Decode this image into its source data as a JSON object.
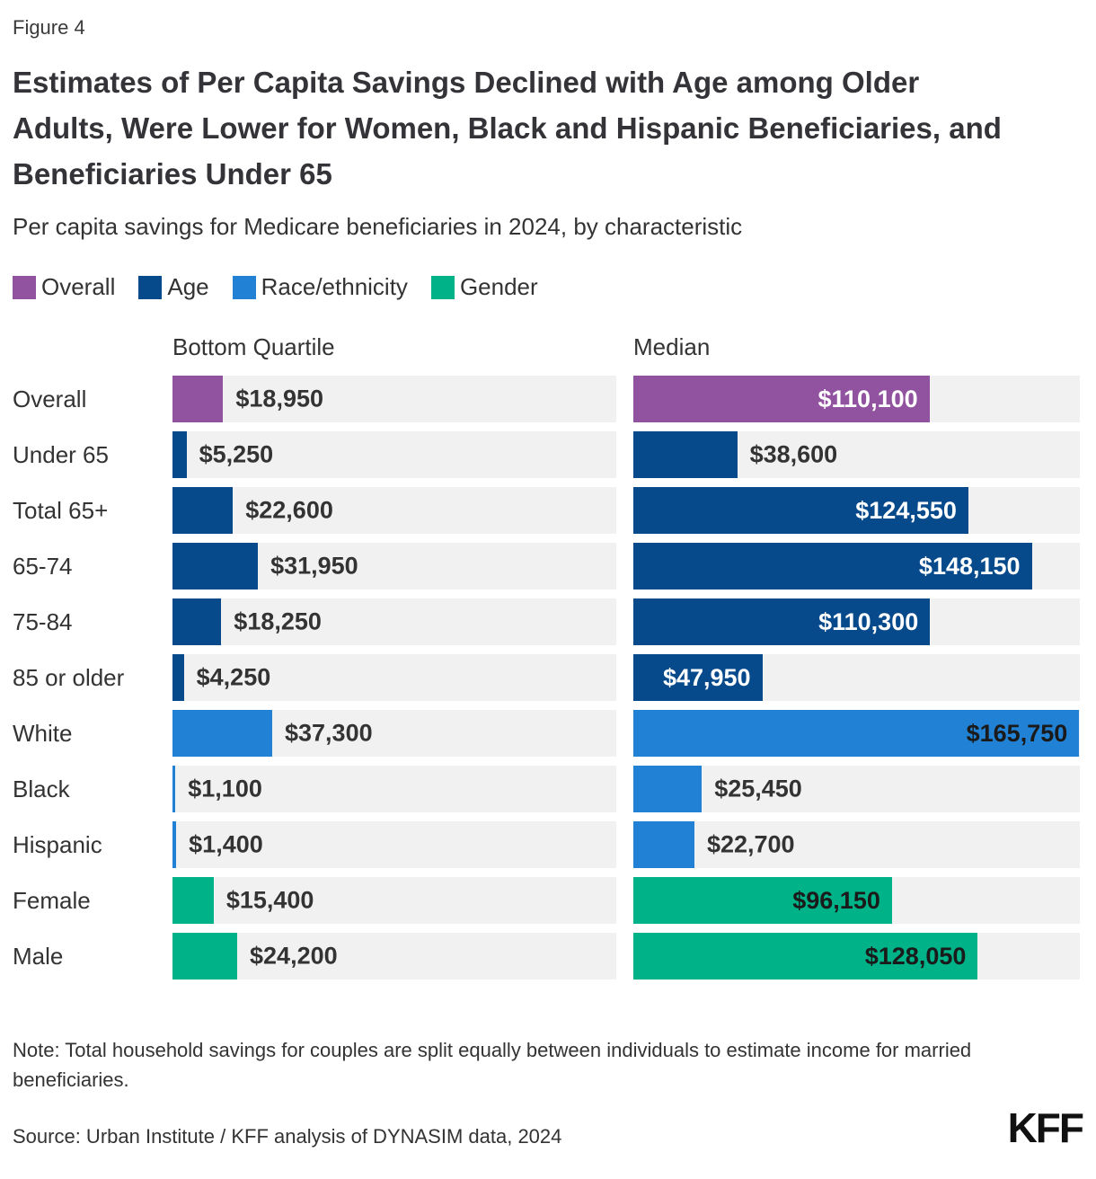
{
  "figure_label": "Figure 4",
  "title": "Estimates of Per Capita Savings Declined with Age among Older Adults, Were Lower for Women, Black and Hispanic Beneficiaries, and Beneficiaries Under 65",
  "subtitle": "Per capita savings for Medicare beneficiaries in 2024, by characteristic",
  "legend": [
    {
      "label": "Overall",
      "color": "#9152A0",
      "on_bar_text": "#FFFFFF"
    },
    {
      "label": "Age",
      "color": "#074A8C",
      "on_bar_text": "#FFFFFF"
    },
    {
      "label": "Race/ethnicity",
      "color": "#2181D4",
      "on_bar_text": "#1A1A1A"
    },
    {
      "label": "Gender",
      "color": "#00B287",
      "on_bar_text": "#1A1A1A"
    }
  ],
  "columns": [
    "Bottom Quartile",
    "Median"
  ],
  "chart_data": {
    "type": "bar",
    "orientation": "horizontal",
    "title": "Per capita savings for Medicare beneficiaries in 2024, by characteristic",
    "axis_max": 166000,
    "track_color": "#F1F1F1",
    "categories": [
      "Overall",
      "Under 65",
      "Total 65+",
      "65-74",
      "75-84",
      "85 or older",
      "White",
      "Black",
      "Hispanic",
      "Female",
      "Male"
    ],
    "series": [
      {
        "name": "Bottom Quartile",
        "values": [
          18950,
          5250,
          22600,
          31950,
          18250,
          4250,
          37300,
          1100,
          1400,
          15400,
          24200
        ]
      },
      {
        "name": "Median",
        "values": [
          110100,
          38600,
          124550,
          148150,
          110300,
          47950,
          165750,
          25450,
          22700,
          96150,
          128050
        ]
      }
    ],
    "rows": [
      {
        "label": "Overall",
        "group": "Overall",
        "bottom_quartile": 18950,
        "bq_label": "$18,950",
        "bq_inside": false,
        "median": 110100,
        "median_label": "$110,100",
        "median_inside": true
      },
      {
        "label": "Under 65",
        "group": "Age",
        "bottom_quartile": 5250,
        "bq_label": "$5,250",
        "bq_inside": false,
        "median": 38600,
        "median_label": "$38,600",
        "median_inside": false
      },
      {
        "label": "Total 65+",
        "group": "Age",
        "bottom_quartile": 22600,
        "bq_label": "$22,600",
        "bq_inside": false,
        "median": 124550,
        "median_label": "$124,550",
        "median_inside": true
      },
      {
        "label": "65-74",
        "group": "Age",
        "bottom_quartile": 31950,
        "bq_label": "$31,950",
        "bq_inside": false,
        "median": 148150,
        "median_label": "$148,150",
        "median_inside": true
      },
      {
        "label": "75-84",
        "group": "Age",
        "bottom_quartile": 18250,
        "bq_label": "$18,250",
        "bq_inside": false,
        "median": 110300,
        "median_label": "$110,300",
        "median_inside": true
      },
      {
        "label": "85 or older",
        "group": "Age",
        "bottom_quartile": 4250,
        "bq_label": "$4,250",
        "bq_inside": false,
        "median": 47950,
        "median_label": "$47,950",
        "median_inside": true
      },
      {
        "label": "White",
        "group": "Race/ethnicity",
        "bottom_quartile": 37300,
        "bq_label": "$37,300",
        "bq_inside": false,
        "median": 165750,
        "median_label": "$165,750",
        "median_inside": true
      },
      {
        "label": "Black",
        "group": "Race/ethnicity",
        "bottom_quartile": 1100,
        "bq_label": "$1,100",
        "bq_inside": false,
        "median": 25450,
        "median_label": "$25,450",
        "median_inside": false
      },
      {
        "label": "Hispanic",
        "group": "Race/ethnicity",
        "bottom_quartile": 1400,
        "bq_label": "$1,400",
        "bq_inside": false,
        "median": 22700,
        "median_label": "$22,700",
        "median_inside": false
      },
      {
        "label": "Female",
        "group": "Gender",
        "bottom_quartile": 15400,
        "bq_label": "$15,400",
        "bq_inside": false,
        "median": 96150,
        "median_label": "$96,150",
        "median_inside": true
      },
      {
        "label": "Male",
        "group": "Gender",
        "bottom_quartile": 24200,
        "bq_label": "$24,200",
        "bq_inside": false,
        "median": 128050,
        "median_label": "$128,050",
        "median_inside": true
      }
    ]
  },
  "note": "Note: Total household savings for couples are split equally between individuals to estimate income for married beneficiaries.",
  "source": "Source: Urban Institute / KFF analysis of DYNASIM data, 2024",
  "logo": "KFF"
}
